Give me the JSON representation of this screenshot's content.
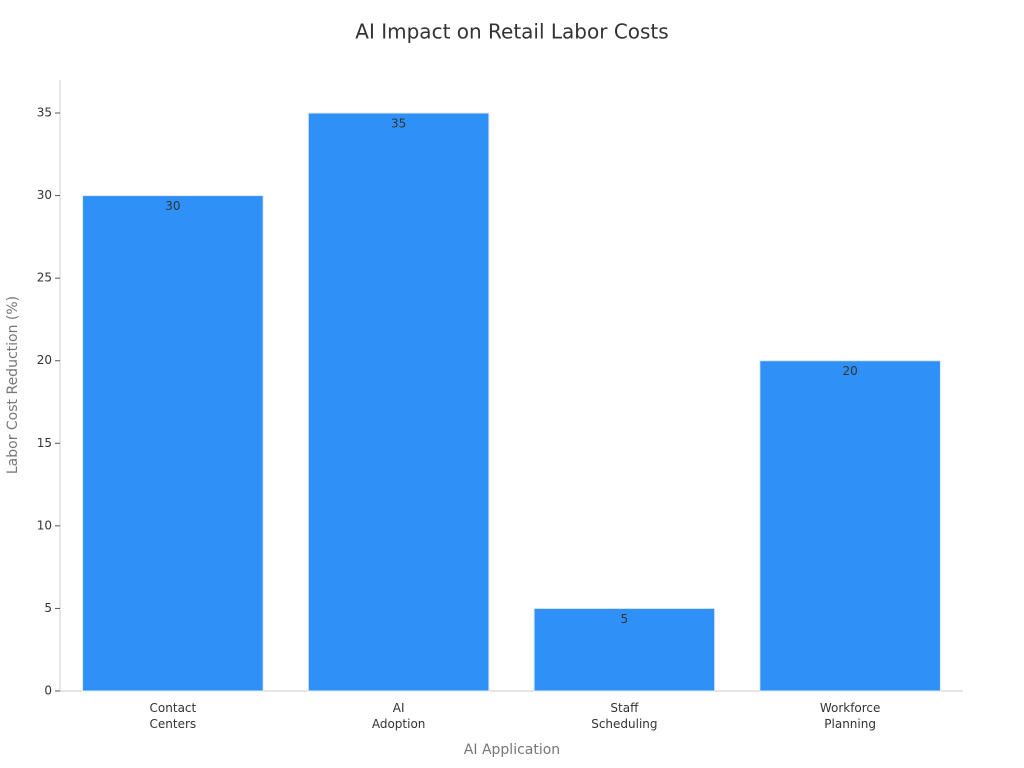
{
  "chart_data": {
    "type": "bar",
    "title": "AI Impact on Retail Labor Costs",
    "x_label": "AI Application",
    "y_label": "Labor Cost Reduction (%)",
    "categories": [
      "Contact Centers",
      "AI Adoption",
      "Staff Scheduling",
      "Workforce Planning"
    ],
    "values": [
      30,
      35,
      5,
      20
    ],
    "color": "#2f91f8",
    "ylim": [
      0,
      37
    ],
    "yticks": [
      0,
      5,
      10,
      15,
      20,
      25,
      30,
      35
    ],
    "grid": false
  }
}
